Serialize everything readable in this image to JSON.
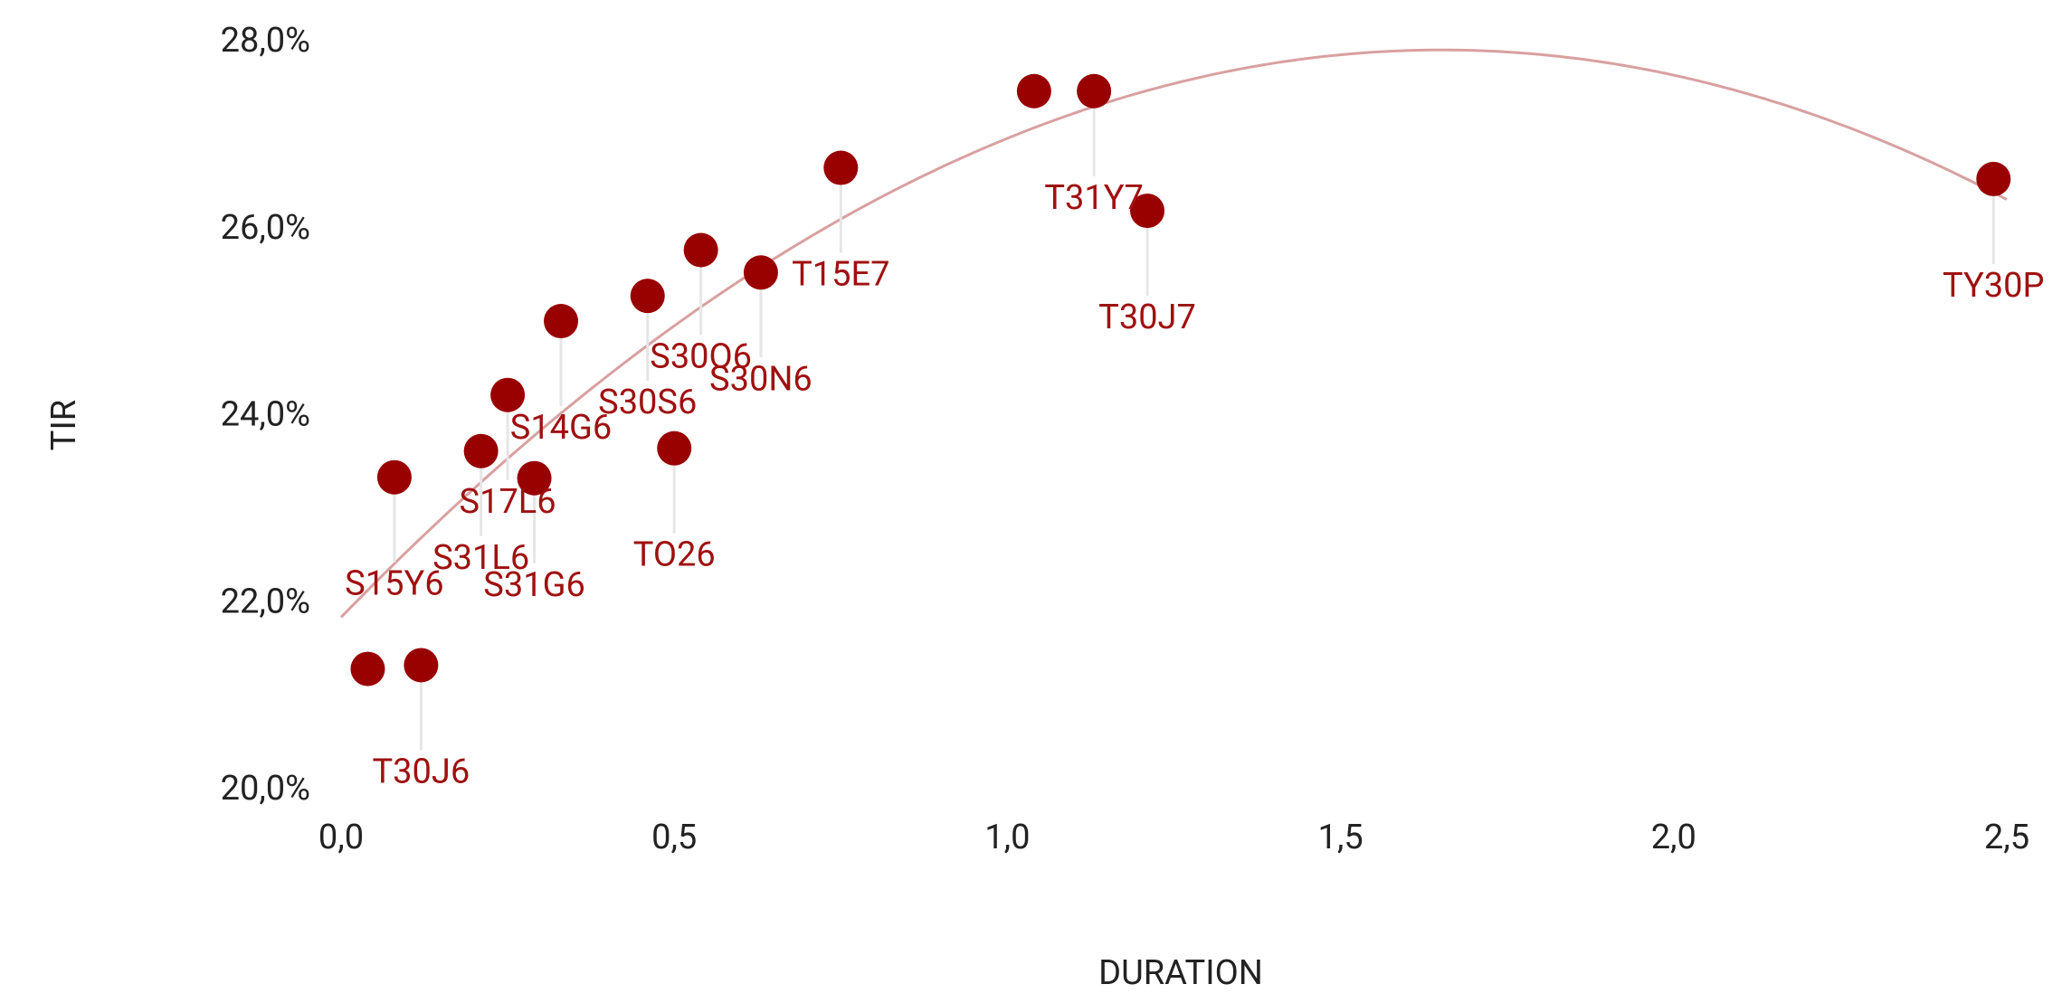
{
  "chart_data": {
    "type": "scatter",
    "x_label": "DURATION",
    "y_label": "TIR",
    "x": [
      0.04,
      0.12,
      0.08,
      0.21,
      0.25,
      0.29,
      0.33,
      0.46,
      0.5,
      0.54,
      0.63,
      0.75,
      1.04,
      1.13,
      1.21,
      2.48
    ],
    "values": [
      21.3,
      21.34,
      23.35,
      23.63,
      24.23,
      23.34,
      25.02,
      25.29,
      23.66,
      25.78,
      25.54,
      26.66,
      27.48,
      27.48,
      26.2,
      26.54
    ],
    "labels": [
      null,
      "T30J6",
      "S15Y6",
      "S31L6",
      "S17L6",
      "S31G6",
      "S14G6",
      "S30S6",
      "TO26",
      "S30O6",
      "S30N6",
      "T15E7",
      null,
      "T31Y7",
      "T30J7",
      "TY30P"
    ],
    "color": "#990000",
    "trendline": true,
    "trend_color": "#d9a0a0",
    "xlim": [
      0,
      2.5
    ],
    "ylim": [
      20,
      28
    ],
    "xticks": [
      {
        "value": 0,
        "label": "0,0"
      },
      {
        "value": 0.5,
        "label": "0,5"
      },
      {
        "value": 1,
        "label": "1,0"
      },
      {
        "value": 1.5,
        "label": "1,5"
      },
      {
        "value": 2,
        "label": "2,0"
      },
      {
        "value": 2.5,
        "label": "2,5"
      }
    ],
    "yticks": [
      {
        "value": 20,
        "label": "20,0%"
      },
      {
        "value": 22,
        "label": "22,0%"
      },
      {
        "value": 24,
        "label": "24,0%"
      },
      {
        "value": 26,
        "label": "26,0%"
      },
      {
        "value": 28,
        "label": "28,0%"
      }
    ],
    "grid": false
  }
}
